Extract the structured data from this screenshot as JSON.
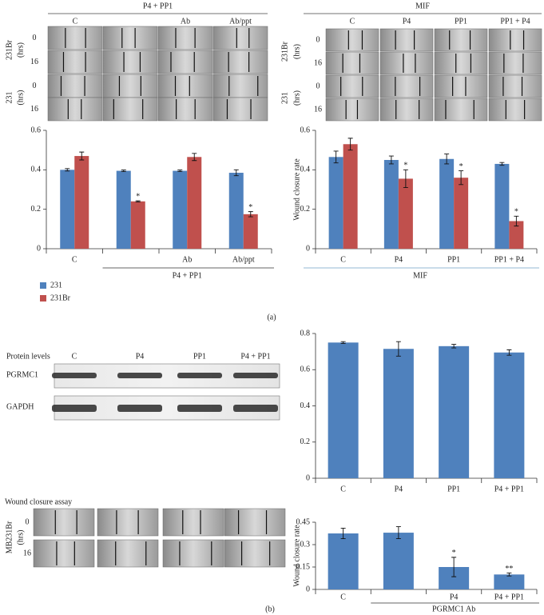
{
  "chart_data": [
    {
      "type": "bar",
      "categories": [
        "C",
        null,
        "Ab",
        "Ab/ppt"
      ],
      "group": {
        "label": "P4 + PP1",
        "start": 1
      },
      "series": [
        {
          "name": "231",
          "color": "#4f81bd",
          "values": [
            0.4,
            0.395,
            0.395,
            0.385
          ],
          "errors": [
            0.006,
            0.004,
            0.004,
            0.015
          ],
          "significance": [
            null,
            null,
            null,
            null
          ]
        },
        {
          "name": "231Br",
          "color": "#c0504d",
          "values": [
            0.47,
            0.24,
            0.465,
            0.175
          ],
          "errors": [
            0.02,
            0.003,
            0.018,
            0.013
          ],
          "significance": [
            null,
            "*",
            null,
            "*"
          ]
        }
      ],
      "ylim": [
        0,
        0.6
      ],
      "yticks": [
        0,
        0.2,
        0.4,
        0.6
      ],
      "legend": "bottom-left"
    },
    {
      "type": "bar",
      "y_label": "Wound closure rate",
      "categories": [
        "C",
        "P4",
        "PP1",
        "PP1 + P4"
      ],
      "group": {
        "label": "MIF",
        "start": 0
      },
      "series": [
        {
          "name": "231",
          "color": "#4f81bd",
          "values": [
            0.465,
            0.45,
            0.455,
            0.43
          ],
          "errors": [
            0.03,
            0.02,
            0.025,
            0.007
          ],
          "significance": [
            null,
            null,
            null,
            null
          ]
        },
        {
          "name": "231Br",
          "color": "#c0504d",
          "values": [
            0.53,
            0.355,
            0.36,
            0.14
          ],
          "errors": [
            0.03,
            0.045,
            0.035,
            0.025
          ],
          "significance": [
            null,
            "*",
            "*",
            "*"
          ]
        }
      ],
      "ylim": [
        0,
        0.6
      ],
      "yticks": [
        0,
        0.2,
        0.4,
        0.6
      ]
    },
    {
      "type": "bar",
      "categories": [
        "C",
        "P4",
        "PP1",
        "P4 + PP1"
      ],
      "series": [
        {
          "name": "PGRMC1",
          "color": "#4f81bd",
          "values": [
            0.75,
            0.715,
            0.73,
            0.695
          ],
          "errors": [
            0.005,
            0.04,
            0.01,
            0.015
          ],
          "significance": [
            null,
            null,
            null,
            null
          ]
        }
      ],
      "ylim": [
        0,
        0.8
      ],
      "yticks": [
        0,
        0.2,
        0.4,
        0.6,
        0.8
      ]
    },
    {
      "type": "bar",
      "y_label": "Wound closure rate",
      "categories": [
        "C",
        null,
        "P4",
        "P4 + PP1"
      ],
      "group": {
        "label": "PGRMC1 Ab",
        "start": 1
      },
      "series": [
        {
          "name": "Wound closure rate",
          "color": "#4f81bd",
          "values": [
            0.375,
            0.38,
            0.15,
            0.1
          ],
          "errors": [
            0.035,
            0.04,
            0.065,
            0.01
          ],
          "significance": [
            null,
            null,
            "*",
            "**"
          ]
        }
      ],
      "ylim": [
        0,
        0.45
      ],
      "yticks": [
        0,
        0.15,
        0.3,
        0.45
      ]
    }
  ],
  "images_a_left": {
    "header": "P4 + PP1",
    "columns": [
      "C",
      null,
      "Ab",
      "Ab/ppt"
    ],
    "groups": [
      {
        "name": "231Br",
        "unit": "(hrs)",
        "rows": [
          "0",
          "16"
        ]
      },
      {
        "name": "231",
        "unit": "(hrs)",
        "rows": [
          "0",
          "16"
        ]
      }
    ]
  },
  "images_a_right": {
    "header": "MIF",
    "columns": [
      "C",
      "P4",
      "PP1",
      "PP1 + P4"
    ],
    "groups": [
      {
        "name": "231Br",
        "unit": "(hrs)",
        "rows": [
          "0",
          "16"
        ]
      },
      {
        "name": "231",
        "unit": "(hrs)",
        "rows": [
          "0",
          "16"
        ]
      }
    ]
  },
  "blot": {
    "title": "Protein levels",
    "columns": [
      "C",
      "P4",
      "PP1",
      "P4 + PP1"
    ],
    "rows": [
      "PGRMC1",
      "GAPDH"
    ]
  },
  "wound_assay": {
    "title": "Wound closure assay",
    "group": {
      "name": "MB231Br",
      "unit": "(hrs)",
      "rows": [
        "0",
        "16"
      ]
    }
  },
  "panel_labels": [
    "(a)",
    "(b)"
  ]
}
